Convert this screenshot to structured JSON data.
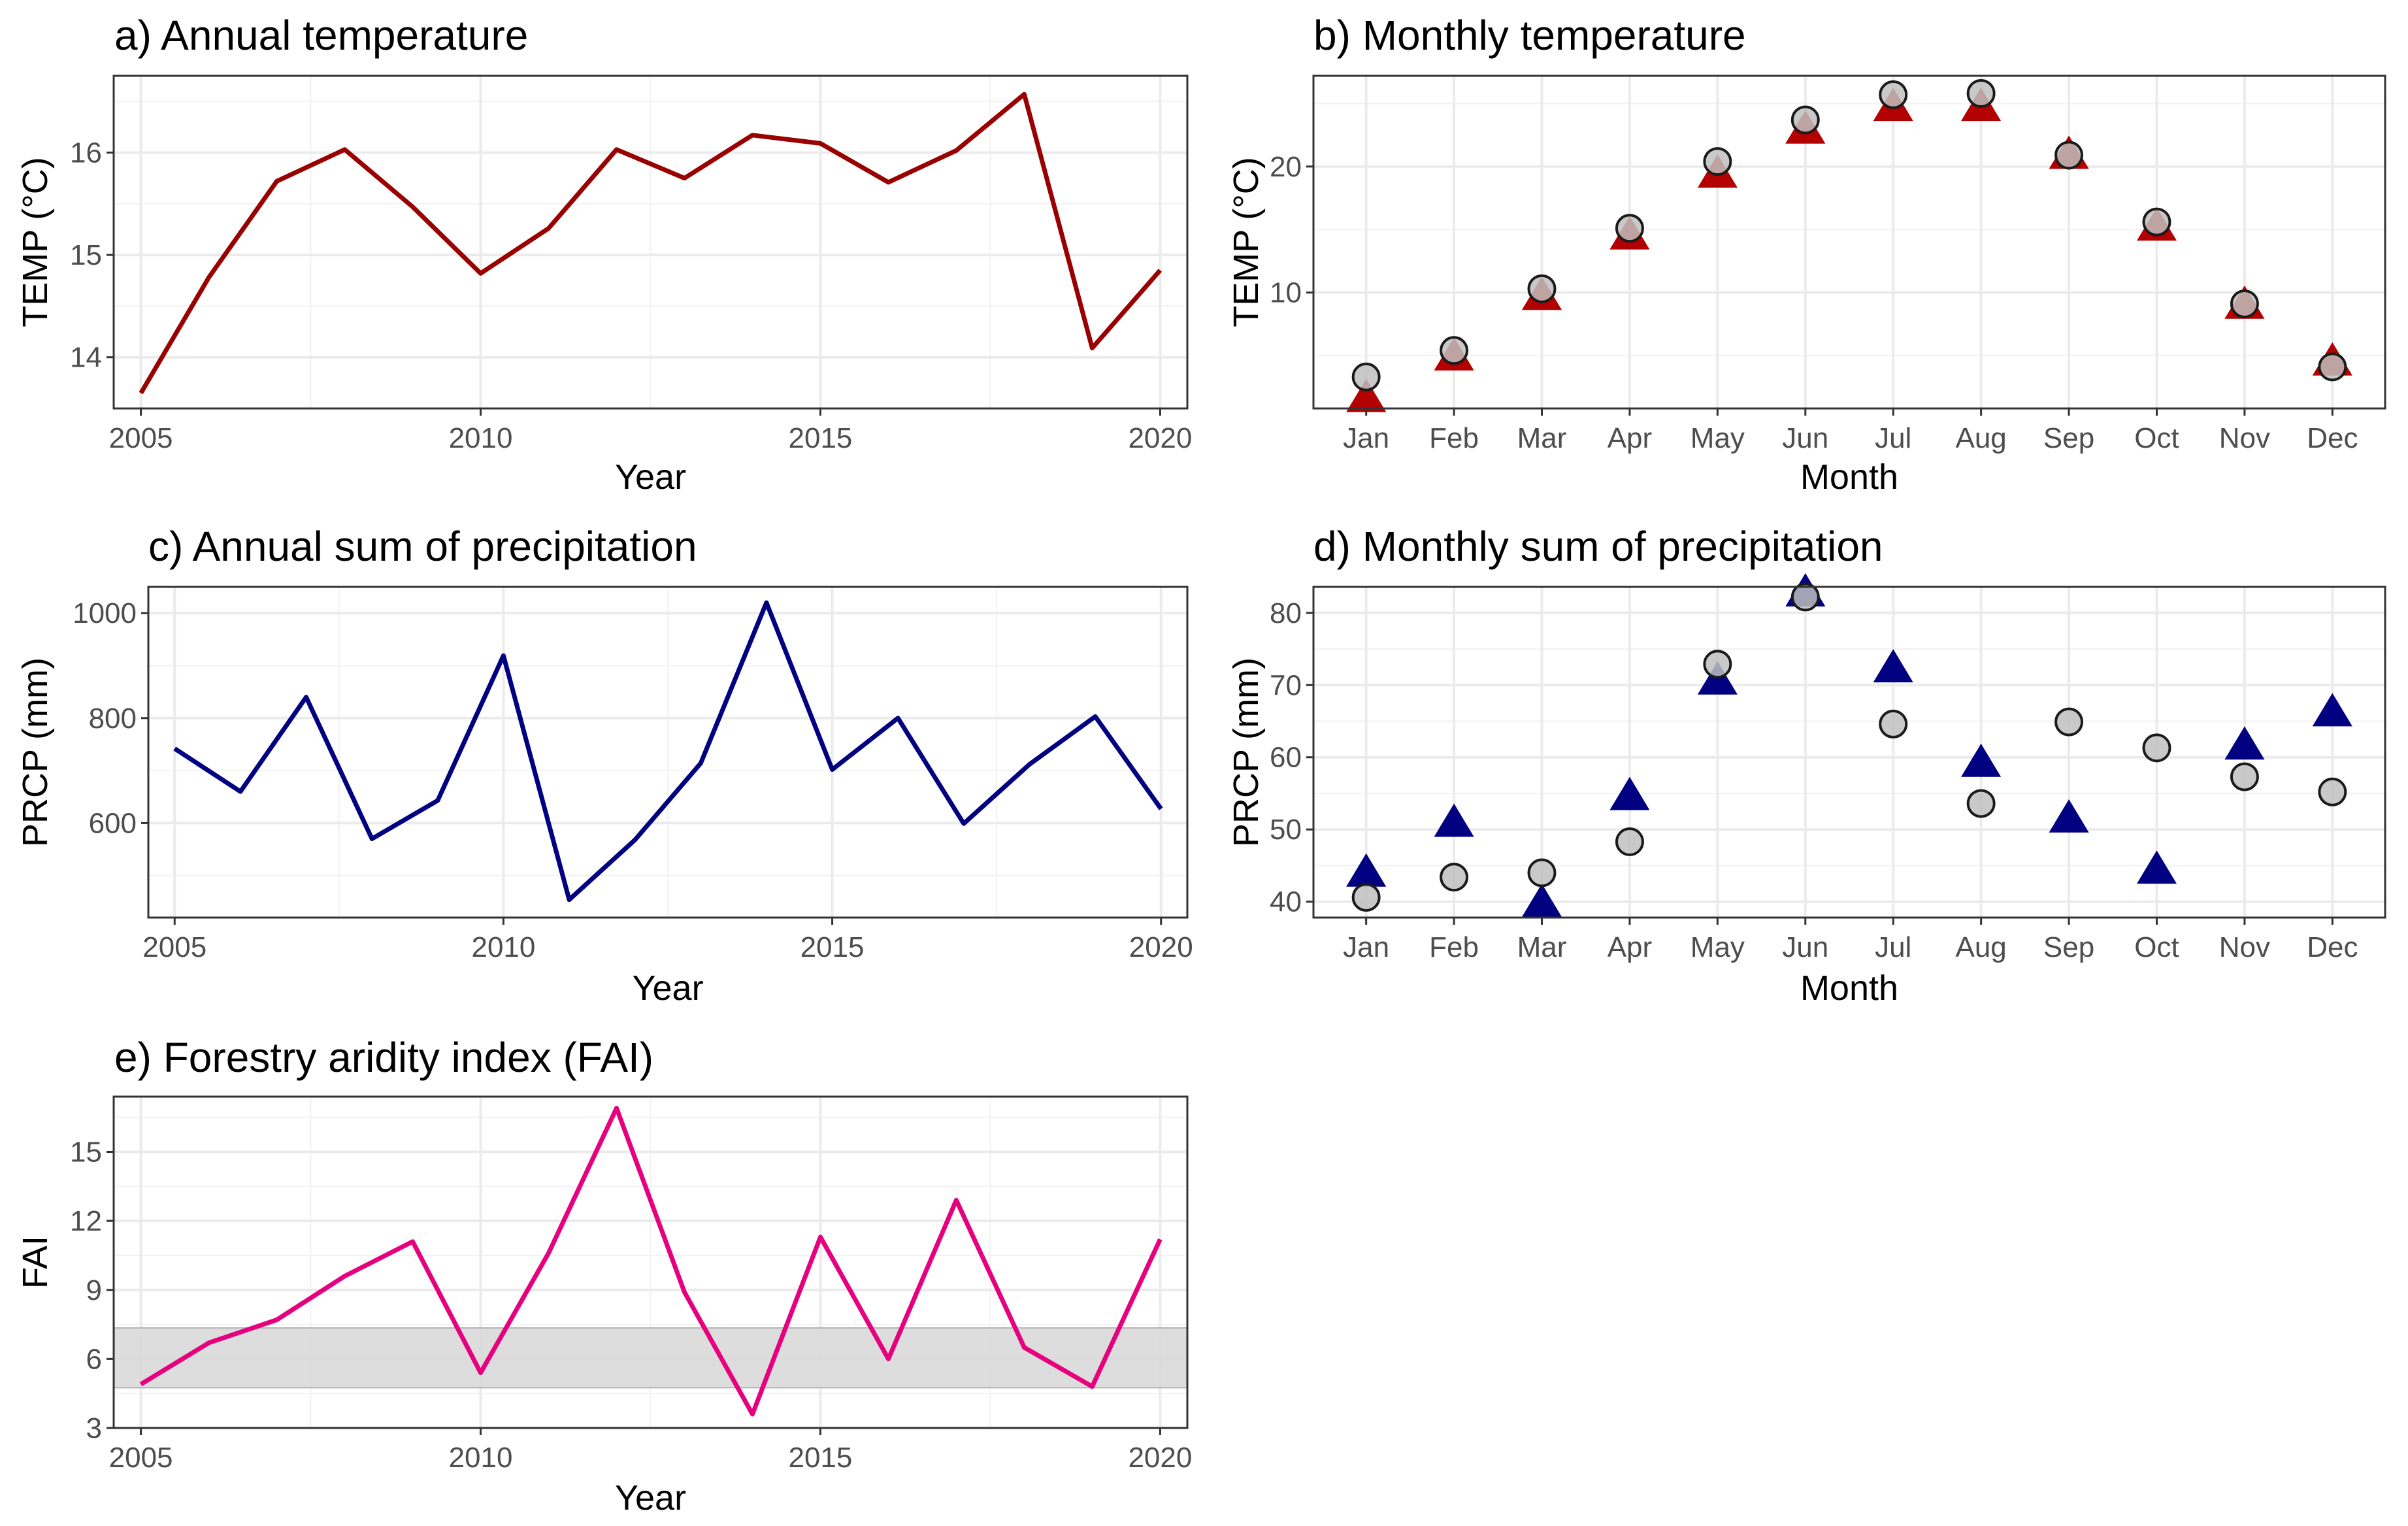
{
  "chart_data": [
    {
      "id": "a",
      "type": "line",
      "title": "a) Annual temperature",
      "xlabel": "Year",
      "ylabel": "TEMP (°C)",
      "xlim": [
        2004.6,
        2020.4
      ],
      "ylim": [
        13.5,
        16.75
      ],
      "xticks": [
        2005,
        2010,
        2015,
        2020
      ],
      "yticks": [
        14,
        15,
        16
      ],
      "grid": true,
      "series": [
        {
          "name": "Annual temperature",
          "color": "#990000",
          "x": [
            2005,
            2006,
            2007,
            2008,
            2009,
            2010,
            2011,
            2012,
            2013,
            2014,
            2015,
            2016,
            2017,
            2018,
            2019,
            2020
          ],
          "values": [
            13.65,
            14.78,
            15.72,
            16.03,
            15.47,
            14.82,
            15.26,
            16.03,
            15.75,
            16.17,
            16.09,
            15.71,
            16.02,
            16.57,
            14.09,
            14.85
          ]
        }
      ]
    },
    {
      "id": "b",
      "type": "scatter",
      "title": "b) Monthly temperature",
      "xlabel": "Month",
      "ylabel": "TEMP (°C)",
      "ylim": [
        0.8,
        27.2
      ],
      "yticks": [
        10,
        20
      ],
      "grid": true,
      "categories": [
        "Jan",
        "Feb",
        "Mar",
        "Apr",
        "May",
        "Jun",
        "Jul",
        "Aug",
        "Sep",
        "Oct",
        "Nov",
        "Dec"
      ],
      "series": [
        {
          "name": "triangles",
          "marker": "triangle",
          "color": "#b30000",
          "values": [
            1.5,
            4.8,
            9.6,
            14.4,
            19.3,
            22.8,
            24.6,
            24.6,
            20.8,
            15.1,
            8.9,
            4.4
          ]
        },
        {
          "name": "circles",
          "marker": "circle",
          "color": "#bfbfbf",
          "values": [
            3.3,
            5.4,
            10.3,
            15.1,
            20.4,
            23.7,
            25.7,
            25.8,
            20.9,
            15.6,
            9.1,
            4.1
          ]
        }
      ]
    },
    {
      "id": "c",
      "type": "line",
      "title": "c) Annual sum of precipitation",
      "xlabel": "Year",
      "ylabel": "PRCP (mm)",
      "xlim": [
        2004.6,
        2020.4
      ],
      "ylim": [
        420,
        1050
      ],
      "xticks": [
        2005,
        2010,
        2015,
        2020
      ],
      "yticks": [
        600,
        800,
        1000
      ],
      "grid": true,
      "series": [
        {
          "name": "Annual sum of precipitation",
          "color": "#000080",
          "x": [
            2005,
            2006,
            2007,
            2008,
            2009,
            2010,
            2011,
            2012,
            2013,
            2014,
            2015,
            2016,
            2017,
            2018,
            2019,
            2020
          ],
          "values": [
            742,
            660,
            840,
            570,
            643,
            919,
            454,
            568,
            714,
            1020,
            702,
            800,
            599,
            712,
            803,
            627
          ]
        }
      ]
    },
    {
      "id": "d",
      "type": "scatter",
      "title": "d) Monthly sum of precipitation",
      "xlabel": "Month",
      "ylabel": "PRCP (mm)",
      "ylim": [
        37.8,
        83.6
      ],
      "yticks": [
        40,
        50,
        60,
        70,
        80
      ],
      "grid": true,
      "categories": [
        "Jan",
        "Feb",
        "Mar",
        "Apr",
        "May",
        "Jun",
        "Jul",
        "Aug",
        "Sep",
        "Oct",
        "Nov",
        "Dec"
      ],
      "series": [
        {
          "name": "triangles",
          "marker": "triangle",
          "color": "#000080",
          "values": [
            43.8,
            50.7,
            39.6,
            54.4,
            70.4,
            82.6,
            72.1,
            59.0,
            51.3,
            44.2,
            61.4,
            66.0
          ]
        },
        {
          "name": "circles",
          "marker": "circle",
          "color": "#bfbfbf",
          "values": [
            40.6,
            43.4,
            44.0,
            48.3,
            72.9,
            82.2,
            64.6,
            53.6,
            64.9,
            61.3,
            57.3,
            55.2
          ]
        }
      ]
    },
    {
      "id": "e",
      "type": "line",
      "title": "e) Forestry aridity index (FAI)",
      "xlabel": "Year",
      "ylabel": "FAI",
      "xlim": [
        2004.6,
        2020.4
      ],
      "ylim": [
        3.0,
        17.4
      ],
      "xticks": [
        2005,
        2010,
        2015,
        2020
      ],
      "yticks": [
        3,
        6,
        9,
        12,
        15
      ],
      "grid": true,
      "band": {
        "from": 4.75,
        "to": 7.35,
        "color": "#d9d9d9"
      },
      "series": [
        {
          "name": "FAI",
          "color": "#e6007e",
          "x": [
            2005,
            2006,
            2007,
            2008,
            2009,
            2010,
            2011,
            2012,
            2013,
            2014,
            2015,
            2016,
            2017,
            2018,
            2019,
            2020
          ],
          "values": [
            4.9,
            6.7,
            7.7,
            9.6,
            11.1,
            5.4,
            10.6,
            16.9,
            8.9,
            3.6,
            11.3,
            6.0,
            12.9,
            6.5,
            4.8,
            11.2
          ]
        }
      ]
    }
  ]
}
